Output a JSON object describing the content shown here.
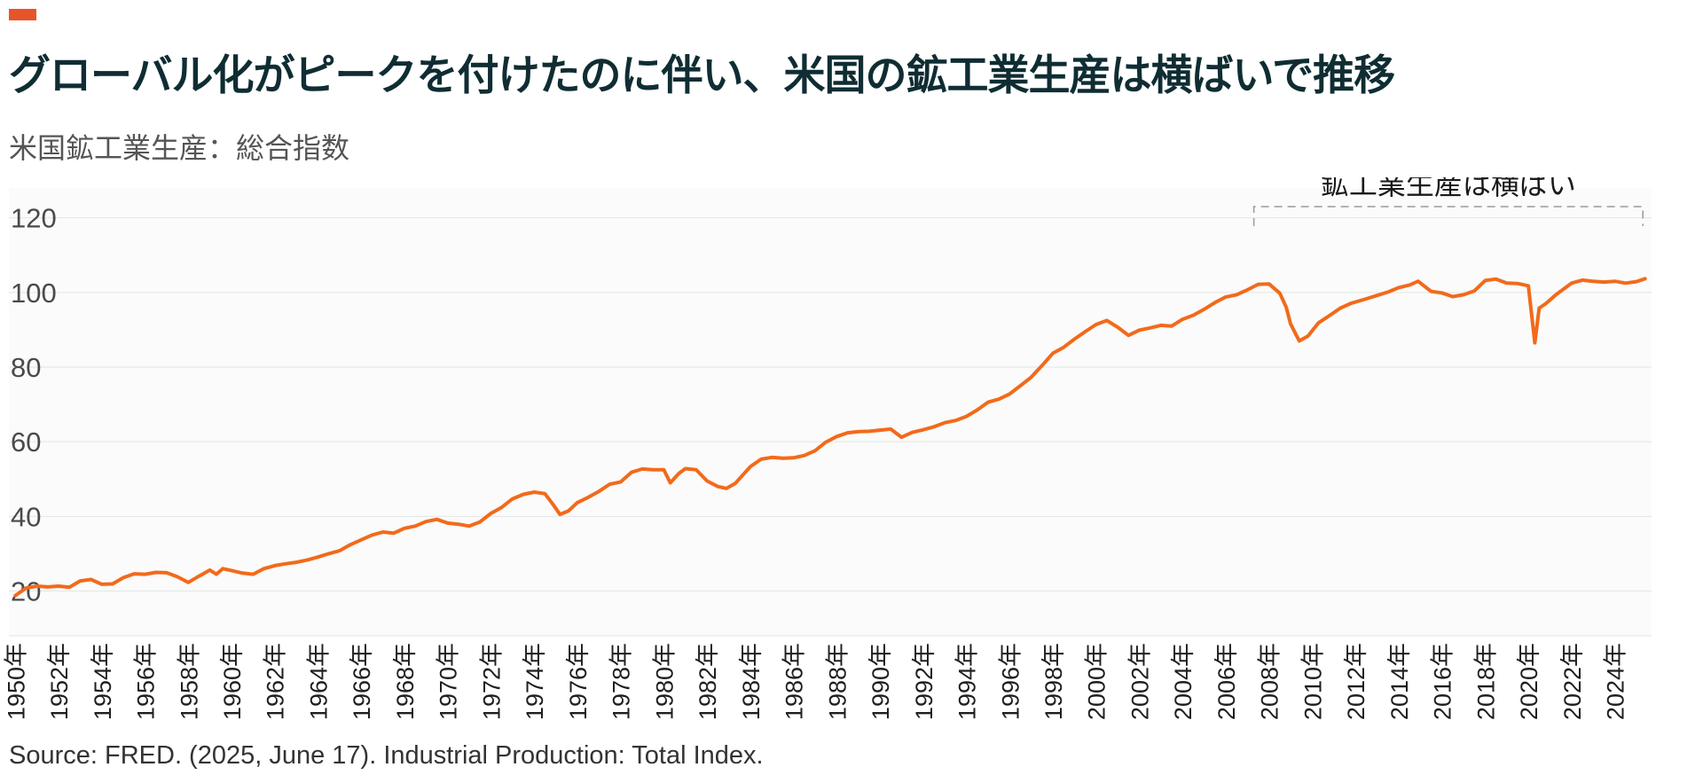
{
  "title": "グローバル化がピークを付けたのに伴い、米国の鉱工業生産は横ばいで推移",
  "subtitle": "米国鉱工業生産：総合指数",
  "source": "Source: FRED. (2025, June 17). Industrial Production: Total Index.",
  "colors": {
    "accent": "#e8542a",
    "line": "#f26a1b",
    "title": "#0f2d33",
    "plot_bg": "#fafbfa",
    "grid": "#e3e6e6"
  },
  "chart_data": {
    "type": "line",
    "title": "米国鉱工業生産：総合指数",
    "xlabel": "",
    "ylabel": "",
    "ylim": [
      8,
      128
    ],
    "xlim": [
      1949.7,
      2025.7
    ],
    "yticks": [
      20,
      40,
      60,
      80,
      100,
      120
    ],
    "xticks": [
      1950,
      1952,
      1954,
      1956,
      1958,
      1960,
      1962,
      1964,
      1966,
      1968,
      1970,
      1972,
      1974,
      1976,
      1978,
      1980,
      1982,
      1984,
      1986,
      1988,
      1990,
      1992,
      1994,
      1996,
      1998,
      2000,
      2002,
      2004,
      2006,
      2008,
      2010,
      2012,
      2014,
      2016,
      2018,
      2020,
      2022,
      2024
    ],
    "x_tick_suffix": "年",
    "grid": true,
    "annotation": {
      "text": "鉱工業生産は横ばい",
      "x_start": 2007.3,
      "x_end": 2025.3,
      "y": 123
    },
    "series": [
      {
        "x": [
          1950.0,
          1950.5,
          1951.0,
          1951.5,
          1952.0,
          1952.5,
          1953.0,
          1953.5,
          1954.0,
          1954.5,
          1955.0,
          1955.5,
          1956.0,
          1956.5,
          1957.0,
          1957.5,
          1958.0,
          1958.5,
          1959.0,
          1959.3,
          1959.6,
          1960.0,
          1960.5,
          1961.0,
          1961.5,
          1962.0,
          1962.5,
          1963.0,
          1963.5,
          1964.0,
          1964.5,
          1965.0,
          1965.5,
          1966.0,
          1966.5,
          1967.0,
          1967.5,
          1968.0,
          1968.5,
          1969.0,
          1969.5,
          1970.0,
          1970.5,
          1971.0,
          1971.5,
          1972.0,
          1972.5,
          1973.0,
          1973.5,
          1974.0,
          1974.5,
          1974.9,
          1975.2,
          1975.6,
          1976.0,
          1976.5,
          1977.0,
          1977.5,
          1978.0,
          1978.5,
          1979.0,
          1979.5,
          1980.0,
          1980.3,
          1980.7,
          1981.0,
          1981.5,
          1982.0,
          1982.5,
          1982.9,
          1983.3,
          1984.0,
          1984.5,
          1985.0,
          1985.5,
          1986.0,
          1986.5,
          1987.0,
          1987.5,
          1988.0,
          1988.5,
          1989.0,
          1989.5,
          1990.0,
          1990.5,
          1991.0,
          1991.5,
          1992.0,
          1992.5,
          1993.0,
          1993.5,
          1994.0,
          1994.5,
          1995.0,
          1995.5,
          1996.0,
          1996.5,
          1997.0,
          1997.5,
          1998.0,
          1998.5,
          1999.0,
          1999.5,
          2000.0,
          2000.5,
          2001.0,
          2001.5,
          2002.0,
          2002.5,
          2003.0,
          2003.5,
          2004.0,
          2004.5,
          2005.0,
          2005.5,
          2006.0,
          2006.5,
          2007.0,
          2007.5,
          2008.0,
          2008.5,
          2008.8,
          2009.0,
          2009.4,
          2009.8,
          2010.3,
          2010.8,
          2011.3,
          2011.8,
          2012.5,
          2013.0,
          2013.5,
          2014.0,
          2014.5,
          2014.9,
          2015.5,
          2016.0,
          2016.5,
          2017.0,
          2017.5,
          2018.0,
          2018.5,
          2019.0,
          2019.5,
          2020.0,
          2020.3,
          2020.5,
          2020.8,
          2021.0,
          2021.3,
          2021.7,
          2022.0,
          2022.5,
          2023.0,
          2023.5,
          2024.0,
          2024.5,
          2025.0,
          2025.4
        ],
        "y": [
          18.8,
          20.8,
          21.3,
          21.1,
          21.3,
          21.0,
          22.7,
          23.1,
          21.8,
          21.9,
          23.6,
          24.6,
          24.5,
          25.0,
          24.9,
          23.8,
          22.3,
          24.0,
          25.6,
          24.5,
          26.0,
          25.5,
          24.8,
          24.5,
          26.0,
          26.8,
          27.3,
          27.7,
          28.3,
          29.1,
          30.0,
          30.8,
          32.4,
          33.7,
          35.0,
          35.8,
          35.5,
          36.8,
          37.4,
          38.6,
          39.2,
          38.2,
          37.9,
          37.4,
          38.5,
          40.8,
          42.4,
          44.7,
          45.9,
          46.5,
          46.1,
          43.0,
          40.5,
          41.5,
          43.7,
          45.1,
          46.7,
          48.6,
          49.2,
          51.8,
          52.7,
          52.5,
          52.5,
          49.0,
          51.5,
          52.8,
          52.5,
          49.5,
          48.0,
          47.5,
          48.8,
          53.3,
          55.3,
          55.8,
          55.6,
          55.7,
          56.3,
          57.6,
          59.9,
          61.4,
          62.4,
          62.7,
          62.8,
          63.1,
          63.4,
          61.2,
          62.5,
          63.2,
          64.0,
          65.1,
          65.7,
          66.8,
          68.5,
          70.6,
          71.4,
          72.8,
          75.0,
          77.3,
          80.4,
          83.7,
          85.3,
          87.5,
          89.5,
          91.4,
          92.5,
          90.7,
          88.5,
          89.9,
          90.5,
          91.2,
          91.0,
          92.8,
          93.9,
          95.5,
          97.3,
          98.8,
          99.4,
          100.7,
          102.2,
          102.3,
          99.8,
          96.0,
          91.6,
          87.0,
          88.3,
          91.9,
          93.8,
          95.8,
          97.1,
          98.3,
          99.2,
          100.1,
          101.3,
          102.0,
          103.0,
          100.3,
          99.9,
          98.9,
          99.4,
          100.4,
          103.2,
          103.6,
          102.5,
          102.4,
          101.8,
          86.5,
          95.8,
          97.0,
          98.0,
          99.5,
          101.2,
          102.5,
          103.3,
          103.0,
          102.8,
          103.0,
          102.5,
          102.9,
          103.7
        ]
      }
    ]
  }
}
